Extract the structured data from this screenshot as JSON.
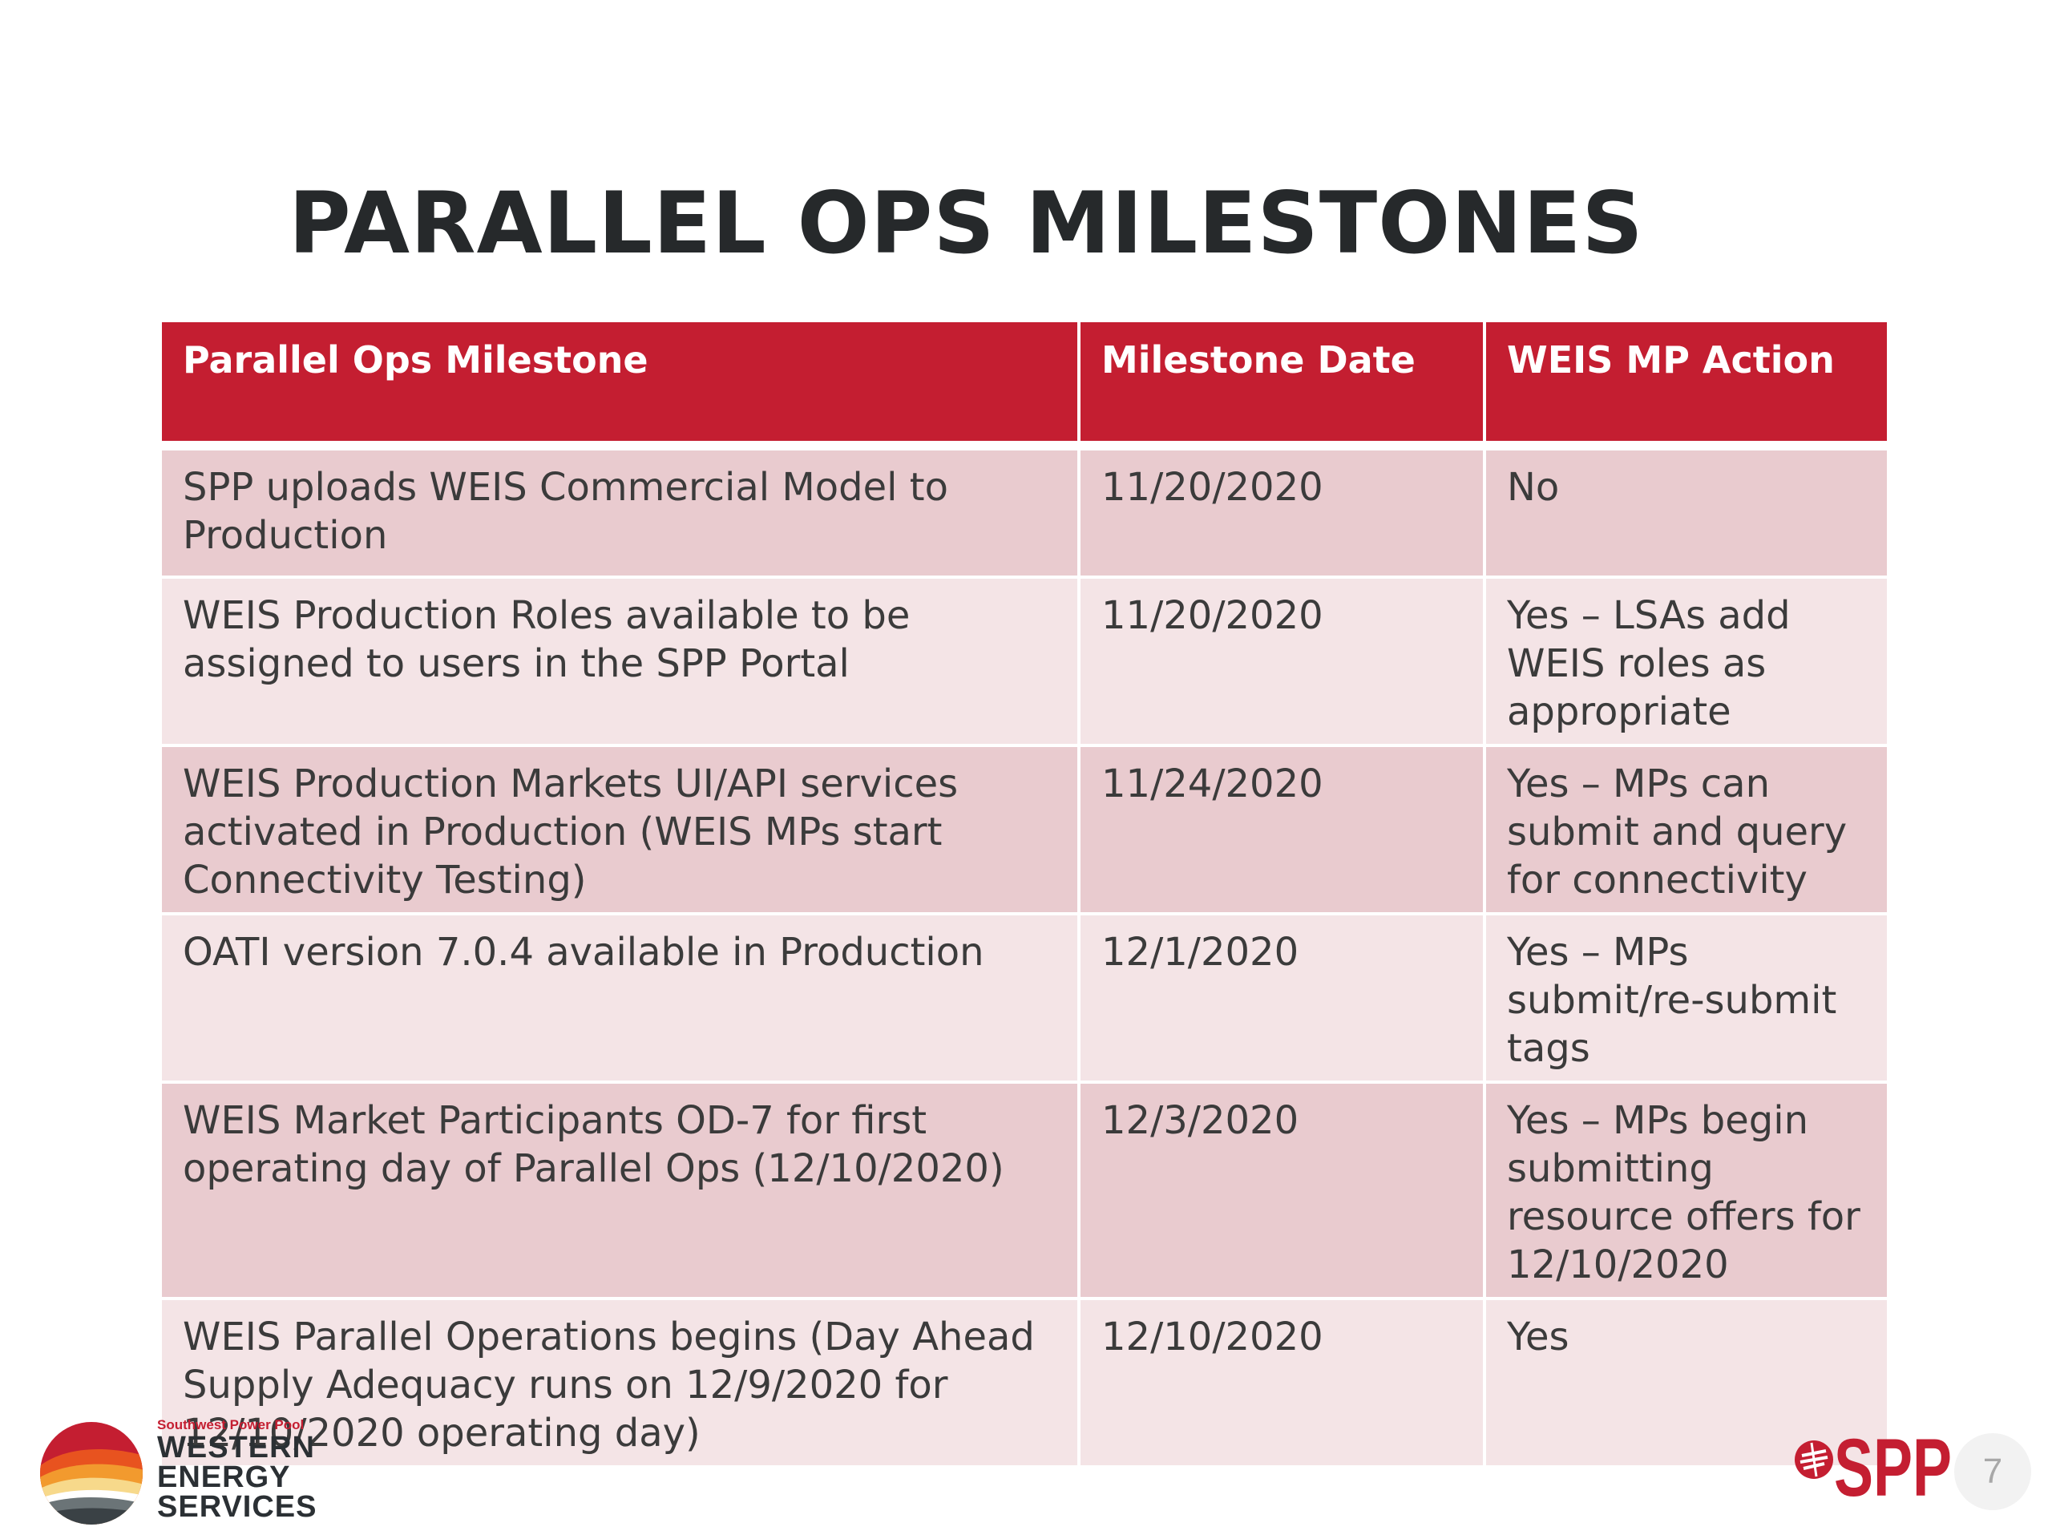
{
  "slide": {
    "title": "PARALLEL OPS MILESTONES",
    "page_number": "7"
  },
  "table": {
    "headers": [
      "Parallel Ops Milestone",
      "Milestone Date",
      "WEIS MP Action"
    ],
    "rows": [
      {
        "milestone": "SPP uploads WEIS Commercial Model to Production",
        "date": "11/20/2020",
        "action": "No"
      },
      {
        "milestone": "WEIS Production Roles available to be assigned to users in the SPP Portal",
        "date": "11/20/2020",
        "action": "Yes – LSAs add WEIS roles as appropriate"
      },
      {
        "milestone": "WEIS Production Markets UI/API services activated in Production (WEIS MPs start Connectivity Testing)",
        "date": "11/24/2020",
        "action": "Yes – MPs can submit and query for connectivity"
      },
      {
        "milestone": "OATI version 7.0.4 available in Production",
        "date": "12/1/2020",
        "action": "Yes – MPs submit/re-submit tags"
      },
      {
        "milestone": "WEIS Market Participants OD-7 for first operating day of Parallel Ops (12/10/2020)",
        "date": "12/3/2020",
        "action": "Yes – MPs begin submitting resource offers for 12/10/2020"
      },
      {
        "milestone": "WEIS Parallel Operations begins (Day Ahead Supply Adequacy runs on 12/9/2020 for 12/10/2020 operating day)",
        "date": "12/10/2020",
        "action": "Yes"
      }
    ]
  },
  "footer": {
    "wes_logo": {
      "subtitle": "Southwest Power Pool",
      "line1": "WESTERN",
      "line2": "ENERGY",
      "line3": "SERVICES"
    },
    "spp_logo": {
      "text": "SPP"
    }
  },
  "colors": {
    "header_red": "#c41e31",
    "row_dark": "#e9cbcf",
    "row_light": "#f4e4e6",
    "title": "#26292b"
  }
}
